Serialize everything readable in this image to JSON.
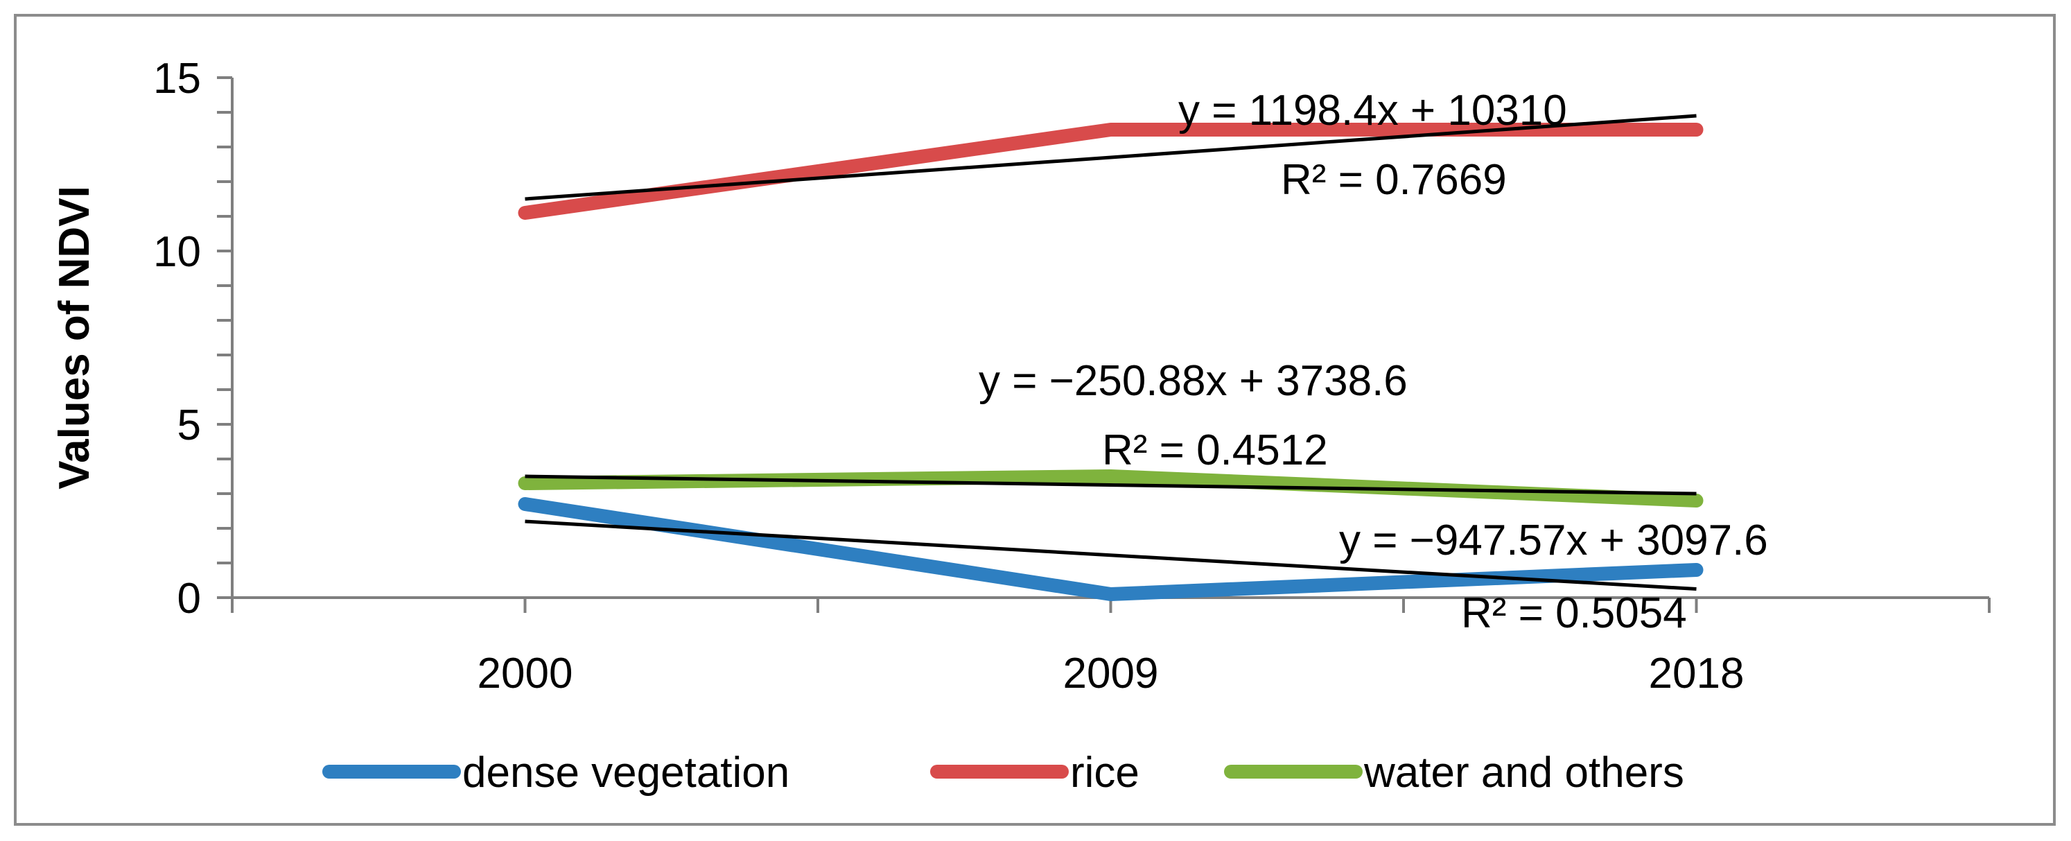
{
  "chart_data": {
    "type": "line",
    "title": "",
    "xlabel": "",
    "ylabel": "Values of NDVI",
    "categories": [
      "2000",
      "2009",
      "2018"
    ],
    "ylim": [
      0,
      15
    ],
    "y_ticks": [
      "0",
      "5",
      "10",
      "15"
    ],
    "y_minor_step": 1,
    "legend_position": "bottom",
    "series": [
      {
        "name": "dense vegetation",
        "color": "#2e7fc1",
        "values": [
          2.7,
          0.1,
          0.8
        ],
        "trendline": {
          "start": 2.2,
          "end": 0.25,
          "equation": "y = −947.57x + 3097.6",
          "r2": "R² = 0.5054"
        }
      },
      {
        "name": "rice",
        "color": "#d84b4b",
        "values": [
          11.1,
          13.5,
          13.5
        ],
        "trendline": {
          "start": 11.5,
          "end": 13.9,
          "equation": "y = 1198.4x + 10310",
          "r2": "R² = 0.7669"
        }
      },
      {
        "name": "water and others",
        "color": "#7fb33d",
        "values": [
          3.3,
          3.5,
          2.8
        ],
        "trendline": {
          "start": 3.5,
          "end": 3.0,
          "equation": "y = −250.88x + 3738.6",
          "r2": "R² = 0.4512"
        }
      }
    ],
    "trendline_color": "#000000"
  }
}
